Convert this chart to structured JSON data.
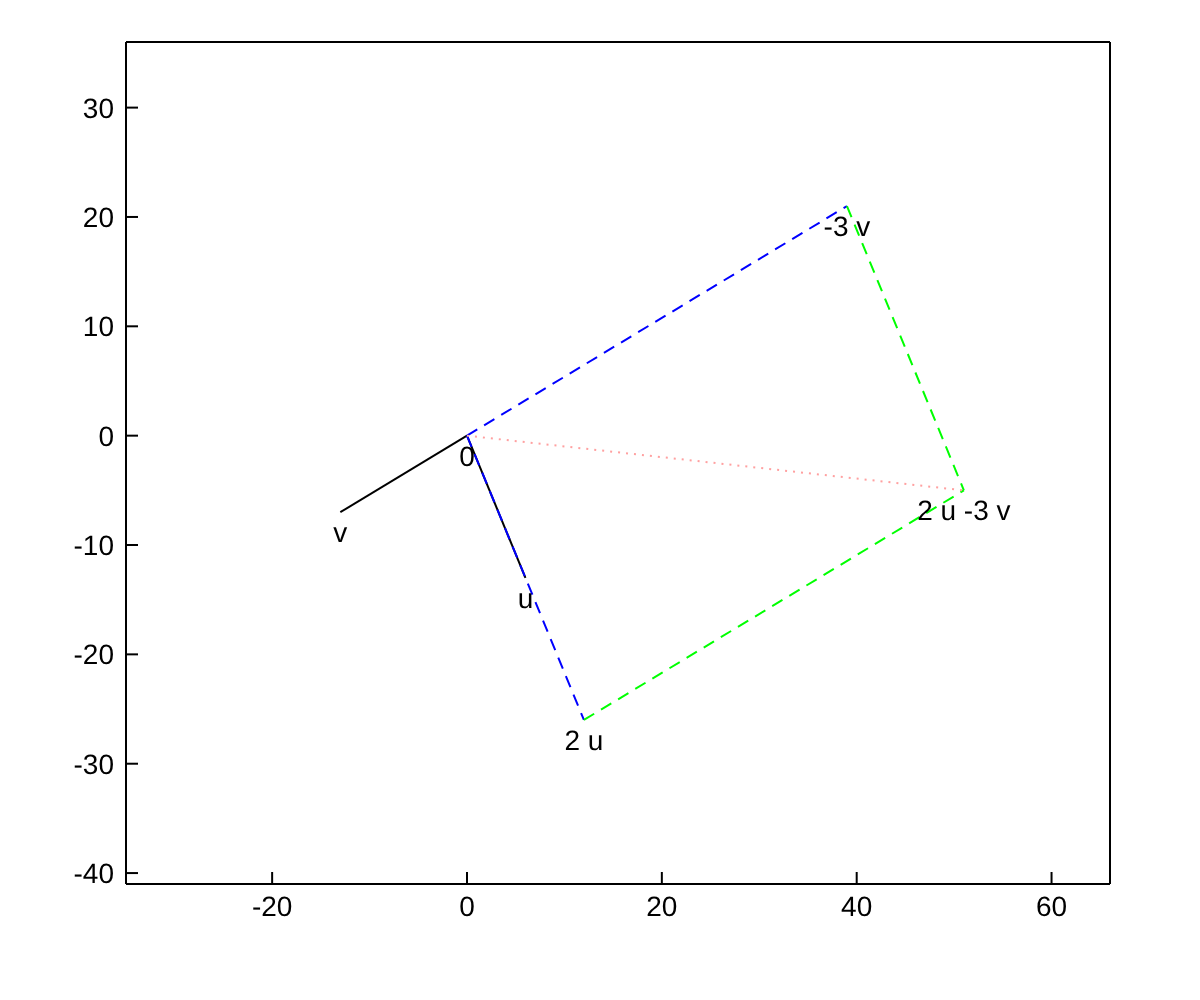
{
  "chart_data": {
    "type": "line",
    "xlim": [
      -35,
      66
    ],
    "ylim": [
      -41,
      36
    ],
    "xticks": [
      -20,
      0,
      20,
      40,
      60
    ],
    "yticks": [
      -40,
      -30,
      -20,
      -10,
      0,
      10,
      20,
      30
    ],
    "marker": "none",
    "series": [
      {
        "color": "#000000",
        "line_style": "solid",
        "x": [
          0,
          6
        ],
        "values": [
          0,
          -13
        ]
      },
      {
        "color": "#000000",
        "line_style": "solid",
        "x": [
          0,
          -13
        ],
        "values": [
          0,
          -7
        ]
      },
      {
        "color": "#0000ff",
        "line_style": "dashed",
        "x": [
          0,
          12
        ],
        "values": [
          0,
          -26
        ]
      },
      {
        "color": "#0000ff",
        "line_style": "dashed",
        "x": [
          0,
          39
        ],
        "values": [
          0,
          21
        ]
      },
      {
        "color": "#00ff00",
        "line_style": "dashed",
        "x": [
          12,
          51
        ],
        "values": [
          -26,
          -5
        ]
      },
      {
        "color": "#00ff00",
        "line_style": "dashed",
        "x": [
          39,
          51
        ],
        "values": [
          21,
          -5
        ]
      },
      {
        "color": "#ffa0a0",
        "line_style": "dotted",
        "x": [
          0,
          51
        ],
        "values": [
          0,
          -5
        ]
      }
    ],
    "annotations": [
      {
        "text": "0",
        "x": 0,
        "y": 0
      },
      {
        "text": "v",
        "x": -13,
        "y": -7
      },
      {
        "text": "u",
        "x": 6,
        "y": -13
      },
      {
        "text": "2 u",
        "x": 12,
        "y": -26
      },
      {
        "text": "-3 v",
        "x": 39,
        "y": 21
      },
      {
        "text": "2 u -3 v",
        "x": 51,
        "y": -5
      }
    ]
  }
}
